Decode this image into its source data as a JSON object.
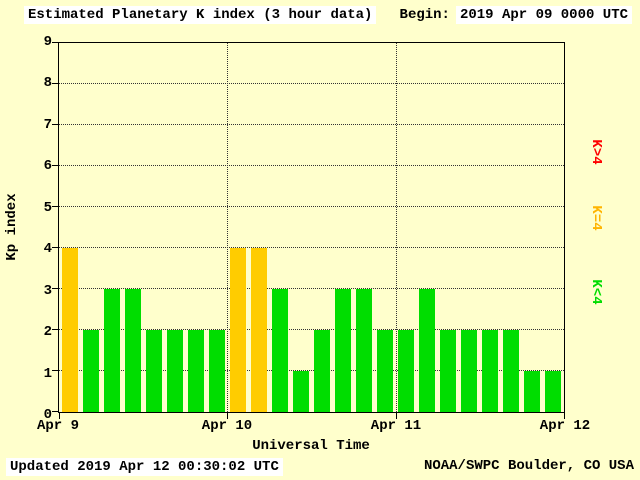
{
  "header": {
    "begin_label": "Begin:",
    "begin_value": "2019 Apr 09 0000 UTC"
  },
  "footer": {
    "updated": "Updated 2019 Apr 12 00:30:02 UTC",
    "organization": "NOAA/SWPC Boulder, CO USA"
  },
  "legend": {
    "items": [
      {
        "label": "K>4",
        "color": "#ff0000"
      },
      {
        "label": "K=4",
        "color": "#ffb400"
      },
      {
        "label": "K<4",
        "color": "#00dd00"
      }
    ]
  },
  "colors": {
    "background": "#ffffcc",
    "axis": "#000000",
    "grid": "#333333"
  },
  "chart_data": {
    "type": "bar",
    "title": "Estimated Planetary K index (3 hour data)",
    "xlabel": "Universal Time",
    "ylabel": "Kp index",
    "ylim": [
      0,
      9
    ],
    "x_tick_labels": [
      "Apr 9",
      "Apr 10",
      "Apr 11",
      "Apr 12"
    ],
    "bars_per_day": 8,
    "values": [
      4,
      2,
      3,
      3,
      2,
      2,
      2,
      2,
      4,
      4,
      3,
      1,
      2,
      3,
      3,
      2,
      2,
      3,
      2,
      2,
      2,
      2,
      1,
      1
    ],
    "bar_colors": {
      "gt4": "#ff0000",
      "eq4": "#ffcc00",
      "lt4": "#00dd00"
    },
    "grid": "dotted horizontal at each integer, dotted vertical at day boundaries",
    "legend_position": "right, rotated"
  }
}
